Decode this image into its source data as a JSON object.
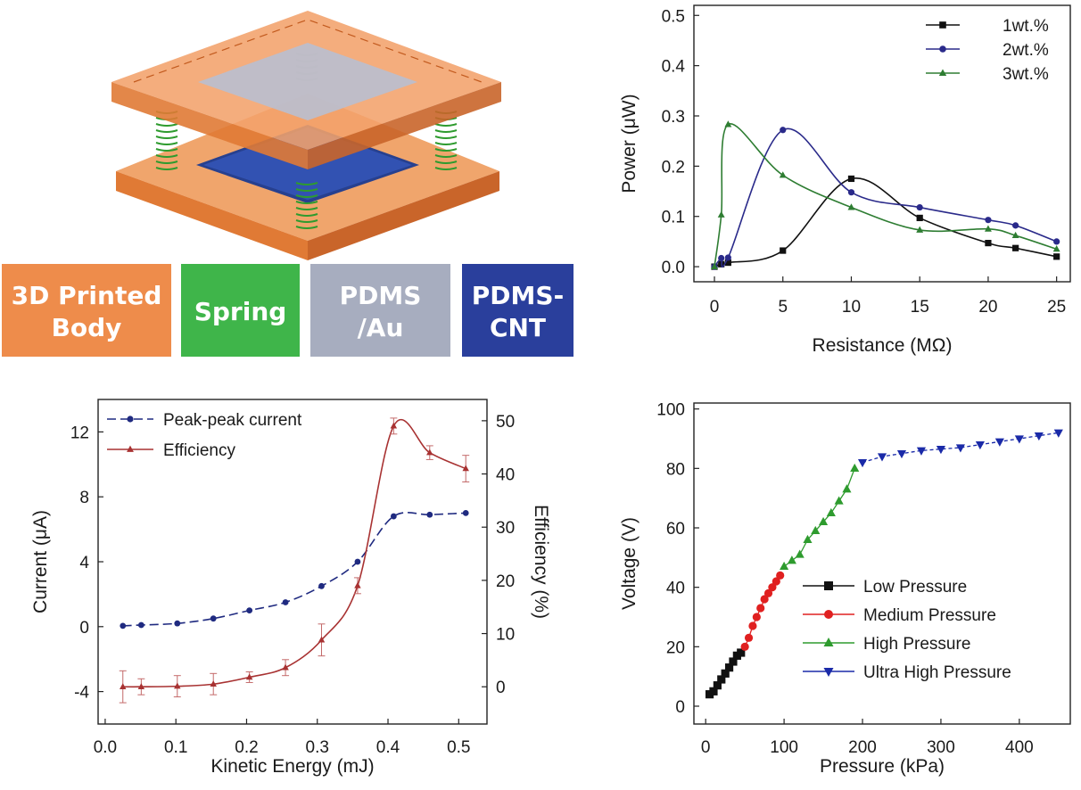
{
  "legend_boxes": [
    {
      "lines": [
        "3D Printed",
        "Body"
      ],
      "color": "#ee8c4b"
    },
    {
      "lines": [
        "Spring"
      ],
      "color": "#3fb54a"
    },
    {
      "lines": [
        "PDMS",
        "/Au"
      ],
      "color": "#a7adbf"
    },
    {
      "lines": [
        "PDMS-",
        "CNT"
      ],
      "color": "#2a3f9c"
    }
  ],
  "chart_data": [
    {
      "id": "power",
      "type": "line",
      "xlabel": "Resistance (MΩ)",
      "ylabel": "Power (μW)",
      "xlim": [
        -1.5,
        26
      ],
      "ylim": [
        -0.03,
        0.52
      ],
      "x_ticks": [
        0,
        5,
        10,
        15,
        20,
        25
      ],
      "y_ticks": [
        0.0,
        0.1,
        0.2,
        0.3,
        0.4,
        0.5
      ],
      "y_tick_labels": [
        "0.0",
        "0.1",
        "0.2",
        "0.3",
        "0.4",
        "0.5"
      ],
      "legend_position": "top-right",
      "series": [
        {
          "name": "1wt.%",
          "color": "#111111",
          "marker": "square",
          "x": [
            0,
            0.5,
            1,
            5,
            10,
            15,
            20,
            22,
            25
          ],
          "y": [
            0.0,
            0.005,
            0.008,
            0.032,
            0.175,
            0.097,
            0.047,
            0.037,
            0.02
          ]
        },
        {
          "name": "2wt.%",
          "color": "#2a2a8a",
          "marker": "circle",
          "x": [
            0,
            0.5,
            1,
            5,
            10,
            15,
            20,
            22,
            25
          ],
          "y": [
            0.0,
            0.017,
            0.018,
            0.272,
            0.148,
            0.118,
            0.093,
            0.082,
            0.05
          ]
        },
        {
          "name": "3wt.%",
          "color": "#2e7d32",
          "marker": "triangle",
          "x": [
            0,
            0.5,
            1,
            5,
            10,
            15,
            20,
            22,
            25
          ],
          "y": [
            0.0,
            0.103,
            0.283,
            0.182,
            0.118,
            0.073,
            0.075,
            0.062,
            0.035
          ]
        }
      ]
    },
    {
      "id": "current",
      "type": "line",
      "xlabel": "Kinetic Energy (mJ)",
      "ylabel": "Current (μA)",
      "y2label": "Efficiency (%)",
      "xlim": [
        -0.01,
        0.54
      ],
      "ylim": [
        -6,
        14
      ],
      "y2lim": [
        -7,
        54
      ],
      "x_ticks": [
        0.0,
        0.1,
        0.2,
        0.3,
        0.4,
        0.5
      ],
      "x_tick_labels": [
        "0.0",
        "0.1",
        "0.2",
        "0.3",
        "0.4",
        "0.5"
      ],
      "y_ticks": [
        -4,
        0,
        4,
        8,
        12
      ],
      "y2_ticks": [
        0,
        10,
        20,
        30,
        40,
        50
      ],
      "legend_position": "top-left",
      "series": [
        {
          "name": "Peak-peak current",
          "color": "#1f2a80",
          "marker": "circle",
          "axis": "left",
          "dashed": true,
          "x": [
            0.025,
            0.051,
            0.102,
            0.153,
            0.204,
            0.255,
            0.306,
            0.357,
            0.408,
            0.459,
            0.51
          ],
          "y": [
            0.05,
            0.1,
            0.2,
            0.5,
            1.0,
            1.5,
            2.5,
            4.0,
            6.8,
            6.9,
            7.0
          ]
        },
        {
          "name": "Efficiency",
          "color": "#a83232",
          "marker": "triangle",
          "axis": "right",
          "x": [
            0.025,
            0.051,
            0.102,
            0.153,
            0.204,
            0.255,
            0.306,
            0.357,
            0.408,
            0.459,
            0.51
          ],
          "y": [
            0,
            0,
            0.1,
            0.5,
            1.8,
            3.6,
            8.8,
            19.0,
            49.0,
            44.0,
            41.0
          ],
          "err": [
            3,
            1.5,
            2,
            2,
            1,
            1.5,
            3,
            1.5,
            1.5,
            1.3,
            2.5
          ]
        }
      ]
    },
    {
      "id": "voltage",
      "type": "scatter",
      "xlabel": "Pressure (kPa)",
      "ylabel": "Voltage (V)",
      "xlim": [
        -15,
        465
      ],
      "ylim": [
        -6,
        102
      ],
      "x_ticks": [
        0,
        100,
        200,
        300,
        400
      ],
      "y_ticks": [
        0,
        20,
        40,
        60,
        80,
        100
      ],
      "legend_position": "bottom-right",
      "series": [
        {
          "name": "Low Pressure",
          "color": "#111111",
          "marker": "square",
          "x": [
            5,
            10,
            15,
            20,
            25,
            30,
            35,
            40,
            45
          ],
          "y": [
            4,
            5,
            7,
            9,
            11,
            13,
            15,
            17,
            18
          ]
        },
        {
          "name": "Medium Pressure",
          "color": "#e02020",
          "marker": "circle",
          "x": [
            50,
            55,
            60,
            65,
            70,
            75,
            80,
            85,
            90,
            95
          ],
          "y": [
            20,
            23,
            27,
            30,
            33,
            36,
            38,
            40,
            42,
            44
          ]
        },
        {
          "name": "High Pressure",
          "color": "#2e9b2e",
          "marker": "triangle",
          "x": [
            100,
            110,
            120,
            130,
            140,
            150,
            160,
            170,
            180,
            190
          ],
          "y": [
            47,
            49,
            51,
            56,
            59,
            62,
            65,
            69,
            73,
            80
          ]
        },
        {
          "name": "Ultra High Pressure",
          "color": "#1a2aa8",
          "marker": "triangle-down",
          "x": [
            200,
            225,
            250,
            275,
            300,
            325,
            350,
            375,
            400,
            425,
            450
          ],
          "y": [
            82,
            84,
            85,
            86,
            86.5,
            87,
            88,
            89,
            90,
            91,
            92
          ]
        }
      ]
    }
  ]
}
